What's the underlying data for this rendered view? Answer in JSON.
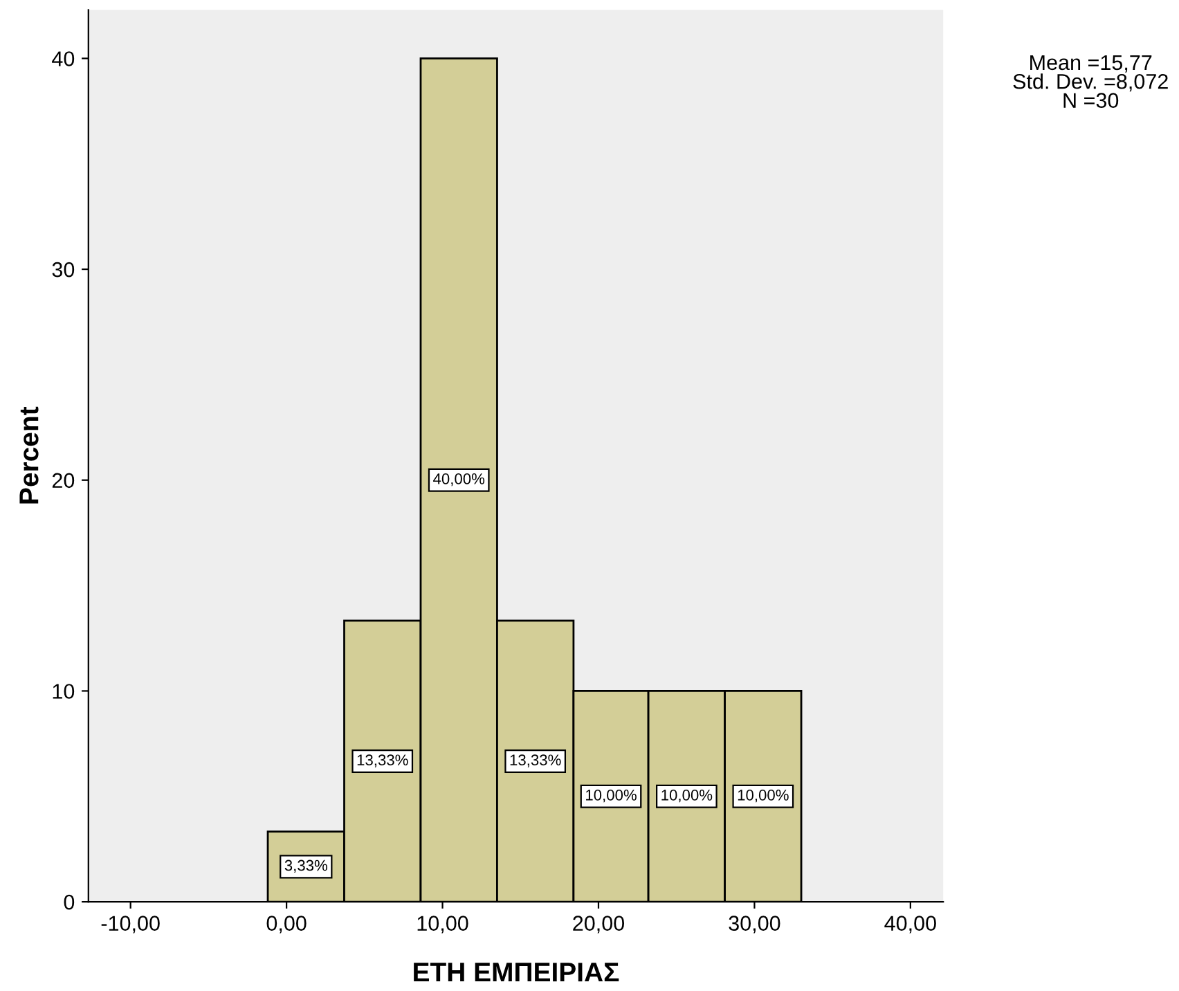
{
  "chart_data": {
    "type": "histogram",
    "xlabel": "ΕΤΗ ΕΜΠΕΙΡΙΑΣ",
    "ylabel": "Percent",
    "bins": [
      -1.2,
      3.7,
      8.6,
      13.5,
      18.4,
      23.2,
      28.1,
      33.0
    ],
    "values": [
      3.33,
      13.33,
      40,
      13.33,
      10,
      10,
      10
    ],
    "value_labels": [
      "3,33%",
      "13,33%",
      "40,00%",
      "13,33%",
      "10,00%",
      "10,00%",
      "10,00%"
    ],
    "color": "#d3ce97",
    "xlim": [
      -12.7,
      42.1
    ],
    "ylim": [
      0,
      42.3
    ],
    "xticks": [
      {
        "value": -10,
        "label": "-10,00"
      },
      {
        "value": 0,
        "label": "0,00"
      },
      {
        "value": 10,
        "label": "10,00"
      },
      {
        "value": 20,
        "label": "20,00"
      },
      {
        "value": 30,
        "label": "30,00"
      },
      {
        "value": 40,
        "label": "40,00"
      }
    ],
    "yticks": [
      0,
      10,
      20,
      30,
      40
    ],
    "grid": false,
    "legend": false,
    "annotations": [
      "Mean =15,77\nStd. Dev. =8,072\nN =30"
    ]
  }
}
